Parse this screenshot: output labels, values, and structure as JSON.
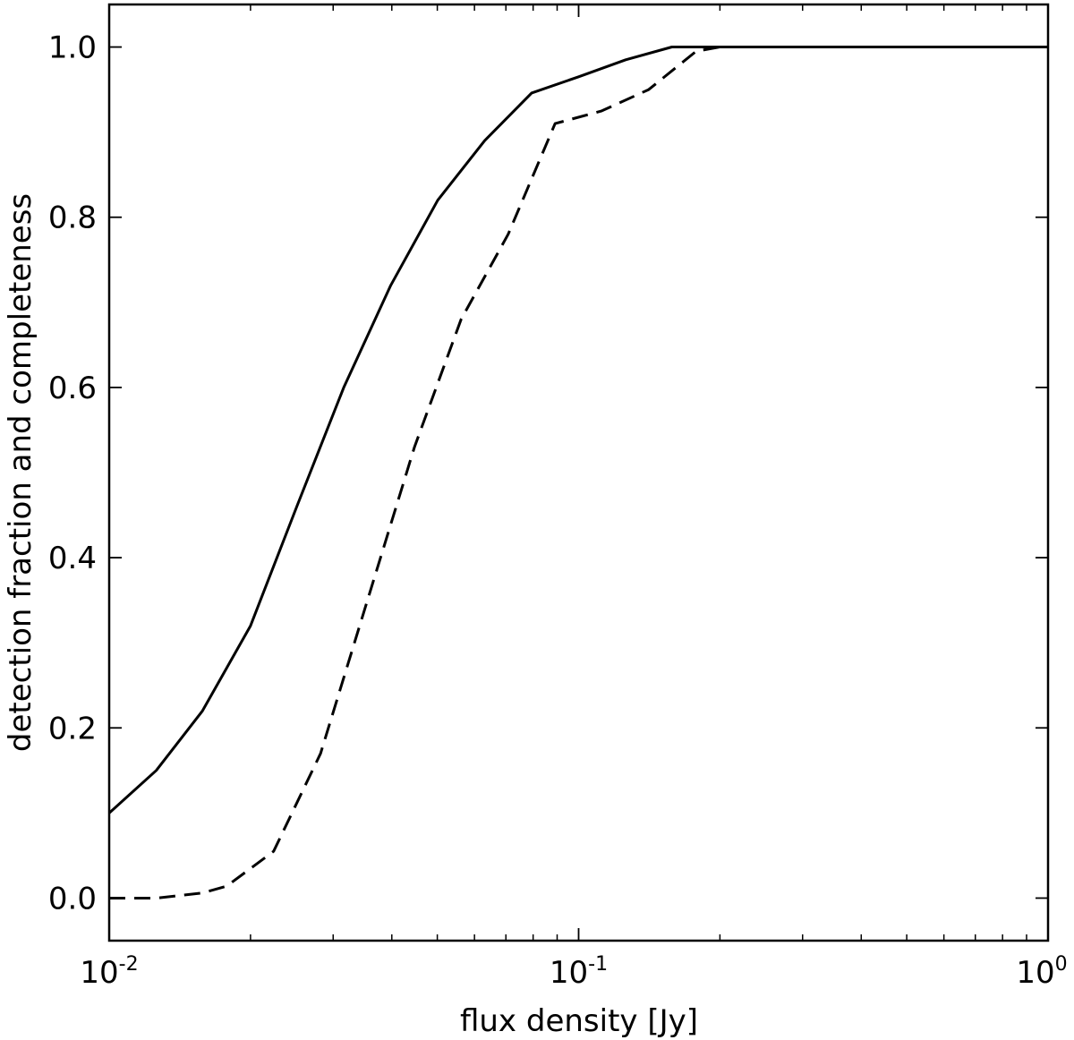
{
  "chart_data": {
    "type": "line",
    "title": "",
    "xlabel": "flux density [Jy]",
    "ylabel": "detection fraction and completeness",
    "xscale": "log",
    "xlim": [
      0.01,
      1.0
    ],
    "ylim": [
      -0.05,
      1.05
    ],
    "grid": false,
    "legend": "none",
    "x_ticks": [
      {
        "value": 0.01,
        "base": "10",
        "exp": "-2"
      },
      {
        "value": 0.1,
        "base": "10",
        "exp": "-1"
      },
      {
        "value": 1.0,
        "base": "10",
        "exp": "0"
      }
    ],
    "y_ticks": [
      {
        "value": 0.0,
        "label": "0.0"
      },
      {
        "value": 0.2,
        "label": "0.2"
      },
      {
        "value": 0.4,
        "label": "0.4"
      },
      {
        "value": 0.6,
        "label": "0.6"
      },
      {
        "value": 0.8,
        "label": "0.8"
      },
      {
        "value": 1.0,
        "label": "1.0"
      }
    ],
    "series": [
      {
        "style": "solid",
        "color": "#000000",
        "x": [
          0.01,
          0.0126,
          0.0158,
          0.02,
          0.0251,
          0.0316,
          0.0398,
          0.0501,
          0.0631,
          0.0794,
          0.1,
          0.126,
          0.158,
          0.2,
          0.316,
          0.501,
          0.794,
          1.0
        ],
        "y": [
          0.1,
          0.15,
          0.22,
          0.32,
          0.46,
          0.6,
          0.72,
          0.82,
          0.89,
          0.946,
          0.965,
          0.985,
          1.0,
          1.0,
          1.0,
          1.0,
          1.0,
          1.0
        ]
      },
      {
        "style": "dashed",
        "color": "#000000",
        "x": [
          0.01,
          0.0126,
          0.0158,
          0.0178,
          0.0224,
          0.0282,
          0.0355,
          0.0447,
          0.0562,
          0.0708,
          0.0891,
          0.112,
          0.141,
          0.178,
          0.2,
          0.316,
          0.501,
          0.794,
          1.0
        ],
        "y": [
          0.0,
          0.0,
          0.006,
          0.014,
          0.055,
          0.17,
          0.35,
          0.53,
          0.68,
          0.78,
          0.91,
          0.925,
          0.95,
          0.995,
          1.0,
          1.0,
          1.0,
          1.0,
          1.0
        ]
      }
    ]
  }
}
